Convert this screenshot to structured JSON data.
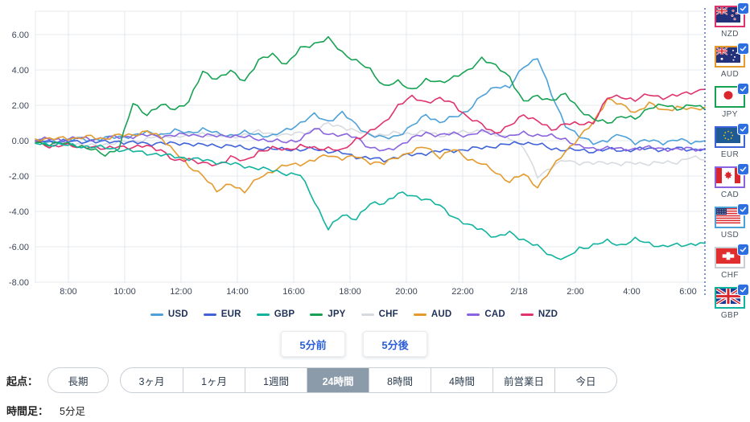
{
  "chart_data": {
    "type": "line",
    "title": "",
    "xlabel": "",
    "ylabel": "",
    "ylim": [
      -8,
      7.3
    ],
    "grid": true,
    "legend_position": "bottom",
    "y_ticks": [
      6,
      4,
      2,
      0,
      -2,
      -4,
      -6,
      -8
    ],
    "y_tick_labels": [
      "6.00",
      "4.00",
      "2.00",
      "0.00",
      "-2.00",
      "-4.00",
      "-6.00",
      "-8.00"
    ],
    "x_tick_labels": [
      "8:00",
      "10:00",
      "12:00",
      "14:00",
      "16:00",
      "18:00",
      "20:00",
      "22:00",
      "2/18",
      "2:00",
      "4:00",
      "6:00"
    ],
    "x_tick_hours": [
      8,
      10,
      12,
      14,
      16,
      18,
      20,
      22,
      24,
      26,
      28,
      30
    ],
    "x_start_hour": 6.83,
    "x_end_hour": 30.6,
    "series": [
      {
        "name": "USD",
        "color": "#4da1d8",
        "values": [
          0.0,
          -0.1,
          0.0,
          0.1,
          0.05,
          0.15,
          0.2,
          0.3,
          0.45,
          0.35,
          0.55,
          0.45,
          0.65,
          0.4,
          0.3,
          0.45,
          0.35,
          0.25,
          0.6,
          1.0,
          1.45,
          1.1,
          1.55,
          0.9,
          0.3,
          0.15,
          0.3,
          0.8,
          1.5,
          1.0,
          1.35,
          1.7,
          2.5,
          3.1,
          3.0,
          4.2,
          4.7,
          2.6,
          0.9,
          0.2,
          -0.1,
          0.0,
          0.35,
          -0.1,
          0.0,
          -0.1,
          0.05,
          -0.1,
          0.0
        ]
      },
      {
        "name": "EUR",
        "color": "#4163d9",
        "values": [
          0.0,
          -0.05,
          0.0,
          -0.1,
          0.0,
          -0.1,
          -0.05,
          -0.1,
          -0.2,
          -0.1,
          -0.2,
          -0.15,
          -0.25,
          -0.3,
          -0.25,
          -0.45,
          -0.4,
          -0.5,
          -0.45,
          -0.55,
          -0.45,
          -0.6,
          -0.7,
          -0.9,
          -1.0,
          -1.1,
          -0.9,
          -0.8,
          -0.7,
          -0.6,
          -0.55,
          -0.5,
          -0.4,
          -0.3,
          -0.2,
          -0.1,
          -0.2,
          -0.45,
          -0.5,
          -0.55,
          -0.6,
          -0.5,
          -0.55,
          -0.5,
          -0.45,
          -0.5,
          -0.45,
          -0.5,
          -0.45
        ]
      },
      {
        "name": "GBP",
        "color": "#11b39e",
        "values": [
          -0.15,
          -0.2,
          -0.25,
          -0.3,
          -0.35,
          -0.4,
          -0.5,
          -0.6,
          -0.7,
          -0.8,
          -0.9,
          -1.0,
          -1.1,
          -1.2,
          -1.3,
          -1.45,
          -1.55,
          -1.7,
          -1.85,
          -1.95,
          -3.4,
          -5.0,
          -4.2,
          -4.4,
          -3.6,
          -3.5,
          -3.0,
          -3.1,
          -3.3,
          -3.7,
          -4.3,
          -4.8,
          -5.0,
          -5.5,
          -5.2,
          -5.6,
          -6.0,
          -6.5,
          -6.7,
          -6.1,
          -5.9,
          -5.7,
          -5.9,
          -5.6,
          -5.8,
          -6.0,
          -5.9,
          -5.85,
          -5.8
        ]
      },
      {
        "name": "JPY",
        "color": "#17a253",
        "values": [
          -0.1,
          -0.2,
          -0.15,
          -0.25,
          -0.5,
          -0.8,
          -0.4,
          2.1,
          1.5,
          2.0,
          1.8,
          2.2,
          3.9,
          3.5,
          3.9,
          3.4,
          4.5,
          4.9,
          4.3,
          5.2,
          5.5,
          5.75,
          5.0,
          4.5,
          4.0,
          3.1,
          3.3,
          2.9,
          3.4,
          3.3,
          3.6,
          3.9,
          4.7,
          4.2,
          3.6,
          2.2,
          2.5,
          2.3,
          2.6,
          1.8,
          1.2,
          1.0,
          1.4,
          1.2,
          1.9,
          2.0,
          1.8,
          2.05,
          1.75
        ]
      },
      {
        "name": "CHF",
        "color": "#d7dbe0",
        "values": [
          0.0,
          -0.1,
          -0.15,
          -0.2,
          -0.3,
          -0.2,
          -0.1,
          -0.05,
          0.1,
          0.3,
          0.25,
          0.3,
          0.4,
          0.3,
          0.2,
          0.35,
          0.5,
          0.4,
          0.3,
          0.45,
          0.6,
          0.95,
          0.8,
          0.5,
          0.4,
          0.3,
          0.45,
          0.4,
          0.5,
          0.3,
          0.4,
          0.5,
          0.6,
          0.3,
          0.2,
          -0.4,
          -2.0,
          -1.5,
          -1.1,
          -1.25,
          -1.3,
          -1.2,
          -1.35,
          -1.25,
          -1.3,
          -1.25,
          -1.2,
          -0.95,
          -1.1
        ]
      },
      {
        "name": "AUD",
        "color": "#e39b2d",
        "values": [
          0.1,
          0.05,
          0.2,
          0.1,
          0.25,
          0.1,
          0.3,
          0.35,
          0.5,
          0.2,
          -0.6,
          -1.5,
          -1.9,
          -2.9,
          -2.4,
          -2.9,
          -2.1,
          -1.7,
          -1.4,
          -1.3,
          -1.1,
          -0.8,
          -1.0,
          -0.9,
          -1.2,
          -1.3,
          -0.9,
          -0.6,
          -0.35,
          -0.9,
          -0.5,
          -1.0,
          -1.3,
          -1.8,
          -2.3,
          -1.9,
          -2.6,
          -1.6,
          -0.6,
          0.2,
          1.0,
          2.4,
          2.0,
          1.6,
          2.1,
          1.7,
          1.9,
          1.75,
          1.9
        ]
      },
      {
        "name": "CAD",
        "color": "#8a63e0",
        "values": [
          0.0,
          0.1,
          0.05,
          0.15,
          0.1,
          0.15,
          0.2,
          0.25,
          0.3,
          0.25,
          0.3,
          0.35,
          0.3,
          0.25,
          0.3,
          0.2,
          0.1,
          0.0,
          -0.1,
          0.1,
          0.65,
          0.4,
          0.3,
          0.2,
          -0.4,
          -0.6,
          -0.3,
          0.1,
          0.45,
          0.3,
          0.4,
          0.3,
          0.5,
          0.4,
          0.2,
          0.45,
          0.3,
          0.25,
          0.1,
          -0.35,
          -0.45,
          -0.4,
          -0.5,
          -0.45,
          -0.4,
          -0.45,
          -0.5,
          -0.45,
          -0.5
        ]
      },
      {
        "name": "NZD",
        "color": "#e0336e",
        "values": [
          -0.1,
          -0.35,
          -0.2,
          -0.4,
          -0.3,
          -0.5,
          -0.3,
          -0.4,
          -0.3,
          -0.5,
          -1.2,
          -1.0,
          -1.3,
          -1.4,
          -0.9,
          -1.2,
          -0.6,
          -0.45,
          -0.5,
          -0.3,
          -0.45,
          -0.4,
          -0.6,
          0.1,
          0.5,
          1.0,
          2.0,
          2.45,
          2.2,
          2.35,
          2.1,
          1.3,
          0.9,
          0.45,
          0.8,
          1.5,
          1.1,
          0.6,
          1.0,
          0.9,
          1.05,
          2.4,
          2.5,
          2.3,
          2.6,
          2.45,
          2.55,
          2.75,
          2.9
        ]
      }
    ]
  },
  "colors": {
    "grid": "#e4e9ed",
    "now_line": "#3558c8",
    "checkbox": "#2d6fe0",
    "selected_tab_bg": "#8c9baa"
  },
  "nav_buttons": {
    "back": "5分前",
    "forward": "5分後"
  },
  "sidebar": {
    "items": [
      {
        "code": "NZD",
        "flag": "nz",
        "color": "#e0336e"
      },
      {
        "code": "AUD",
        "flag": "au",
        "color": "#e39b2d"
      },
      {
        "code": "JPY",
        "flag": "jp",
        "color": "#17a253"
      },
      {
        "code": "EUR",
        "flag": "eu",
        "color": "#4163d9"
      },
      {
        "code": "CAD",
        "flag": "ca",
        "color": "#8a63e0"
      },
      {
        "code": "USD",
        "flag": "us",
        "color": "#4da1d8"
      },
      {
        "code": "CHF",
        "flag": "ch",
        "color": "#c9ced4"
      },
      {
        "code": "GBP",
        "flag": "gb",
        "color": "#11b39e"
      }
    ]
  },
  "controls": {
    "origin_label": "起点：",
    "long_term": "長期",
    "range_tabs": [
      {
        "label": "3ヶ月",
        "selected": false
      },
      {
        "label": "1ヶ月",
        "selected": false
      },
      {
        "label": "1週間",
        "selected": false
      },
      {
        "label": "24時間",
        "selected": true
      },
      {
        "label": "8時間",
        "selected": false
      },
      {
        "label": "4時間",
        "selected": false
      },
      {
        "label": "前営業日",
        "selected": false
      },
      {
        "label": "今日",
        "selected": false
      }
    ],
    "timeframe_label": "時間足：",
    "timeframe_value": "5分足"
  }
}
